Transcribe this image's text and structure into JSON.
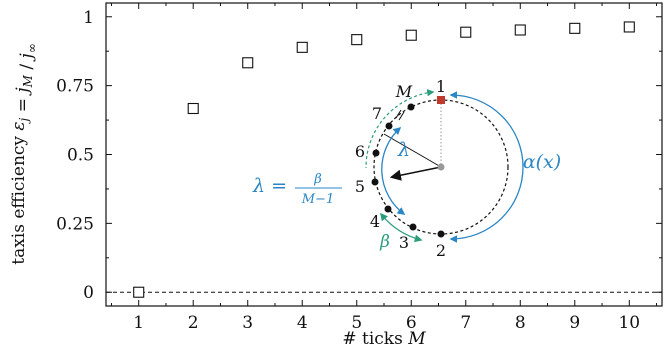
{
  "chart_data": {
    "type": "scatter",
    "x": [
      1,
      2,
      3,
      4,
      5,
      6,
      7,
      8,
      9,
      10
    ],
    "y": [
      0.0,
      0.667,
      0.833,
      0.889,
      0.917,
      0.933,
      0.944,
      0.952,
      0.958,
      0.963
    ],
    "xlim": [
      0.4,
      10.6
    ],
    "ylim": [
      -0.05,
      1.05
    ],
    "xticks": [
      1,
      2,
      3,
      4,
      5,
      6,
      7,
      8,
      9,
      10
    ],
    "yticks": [
      0,
      0.25,
      0.5,
      0.75,
      1
    ],
    "ytick_labels": [
      "0",
      "0.25",
      "0.5",
      "0.75",
      "1"
    ],
    "xlabel": "# ticks M",
    "ylabel": "taxis efficiency ε_j = j_M / j_∞",
    "marker": "open-square",
    "reference_line": {
      "y": 0,
      "style": "dashed"
    },
    "grid": false,
    "legend": "none",
    "inset": {
      "tick_labels": [
        "1",
        "2",
        "3",
        "4",
        "5",
        "6",
        "7"
      ],
      "labels": {
        "M": "M",
        "lambda": "λ",
        "alpha": "α(x)",
        "lambda_formula_lhs": "λ =",
        "lambda_formula_num": "β",
        "lambda_formula_den": "M−1",
        "beta": "β"
      }
    }
  },
  "colors": {
    "blue": "#2a86c4",
    "green": "#2a9d7a",
    "red": "#c0392b",
    "black": "#111111",
    "gray": "#999999"
  }
}
